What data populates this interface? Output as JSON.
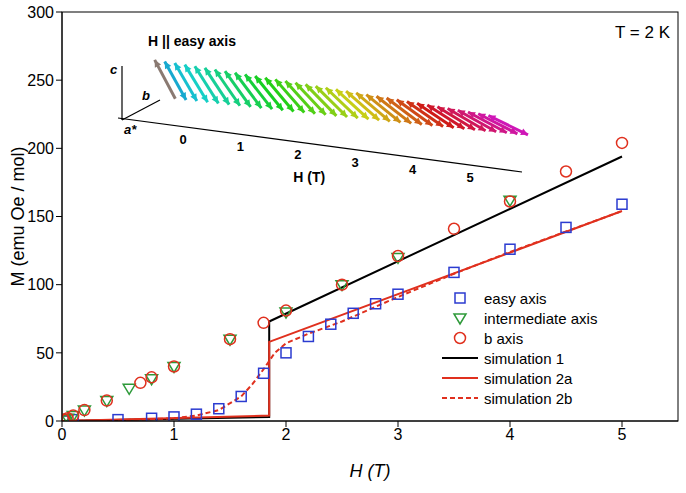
{
  "chart_data": {
    "type": "scatter",
    "xlabel": "H (T)",
    "ylabel": "M (emu Oe / mol)",
    "xlim": [
      0,
      5.5
    ],
    "xticks": [
      0,
      1,
      2,
      3,
      4,
      5
    ],
    "ylim": [
      0,
      300
    ],
    "yticks": [
      0,
      50,
      100,
      150,
      200,
      250,
      300
    ],
    "legend": "lower right",
    "annotations": [
      {
        "text": "T = 2 K"
      }
    ],
    "series": [
      {
        "name": "easy axis",
        "type": "scatter",
        "marker": "square",
        "color": "#2b3bd0",
        "x": [
          0.02,
          0.1,
          0.5,
          0.8,
          1.0,
          1.2,
          1.4,
          1.6,
          1.8,
          2.0,
          2.2,
          2.4,
          2.6,
          2.8,
          3.0,
          3.5,
          4.0,
          4.5,
          5.0
        ],
        "values": [
          0,
          1,
          1,
          2,
          3,
          5,
          9,
          18,
          35,
          50,
          62,
          71,
          79,
          86,
          93,
          109,
          126,
          142,
          159
        ]
      },
      {
        "name": "intermediate axis",
        "type": "scatter",
        "marker": "triangle_down",
        "color": "#2e9a3a",
        "x": [
          0.02,
          0.05,
          0.1,
          0.2,
          0.4,
          0.6,
          0.8,
          1.0,
          1.5,
          2.0,
          2.5,
          3.0,
          4.0
        ],
        "values": [
          1,
          2,
          4,
          8,
          15,
          24,
          31,
          40,
          60,
          80,
          100,
          120,
          162
        ]
      },
      {
        "name": "b axis",
        "type": "scatter",
        "marker": "circle",
        "color": "#e0301e",
        "x": [
          0.02,
          0.05,
          0.1,
          0.2,
          0.4,
          0.7,
          0.8,
          1.0,
          1.5,
          1.8,
          2.0,
          2.5,
          3.0,
          3.5,
          4.0,
          4.5,
          5.0
        ],
        "values": [
          1,
          2,
          4,
          8,
          15,
          28,
          32,
          40,
          60,
          72,
          81,
          100,
          121,
          141,
          161,
          183,
          204
        ]
      },
      {
        "name": "simulation 1",
        "type": "line",
        "line_style": "solid",
        "color": "#000000",
        "x": [
          0,
          1.85,
          1.85,
          5.0
        ],
        "values": [
          0,
          3,
          73,
          194
        ]
      },
      {
        "name": "simulation 2a",
        "type": "line",
        "line_style": "solid",
        "color": "#e0301e",
        "x": [
          0,
          1.85,
          1.85,
          5.0
        ],
        "values": [
          0,
          4,
          58,
          154
        ]
      },
      {
        "name": "simulation 2b",
        "type": "line",
        "line_style": "dashed",
        "color": "#e0301e",
        "x": [
          0,
          0.5,
          1.0,
          1.2,
          1.4,
          1.6,
          1.7,
          1.8,
          1.9,
          2.0,
          2.2,
          2.5,
          3.0,
          3.5,
          4.0,
          4.5,
          5.0
        ],
        "values": [
          0,
          0.5,
          2,
          4,
          8,
          18,
          27,
          38,
          50,
          57,
          64,
          73,
          91,
          108,
          124,
          139,
          154
        ]
      }
    ],
    "inset": {
      "title": "H || easy axis",
      "axis_labels": [
        "c",
        "b",
        "a*"
      ],
      "xlabel": "H (T)",
      "xticks": [
        0,
        1,
        2,
        3,
        4,
        5
      ]
    }
  }
}
